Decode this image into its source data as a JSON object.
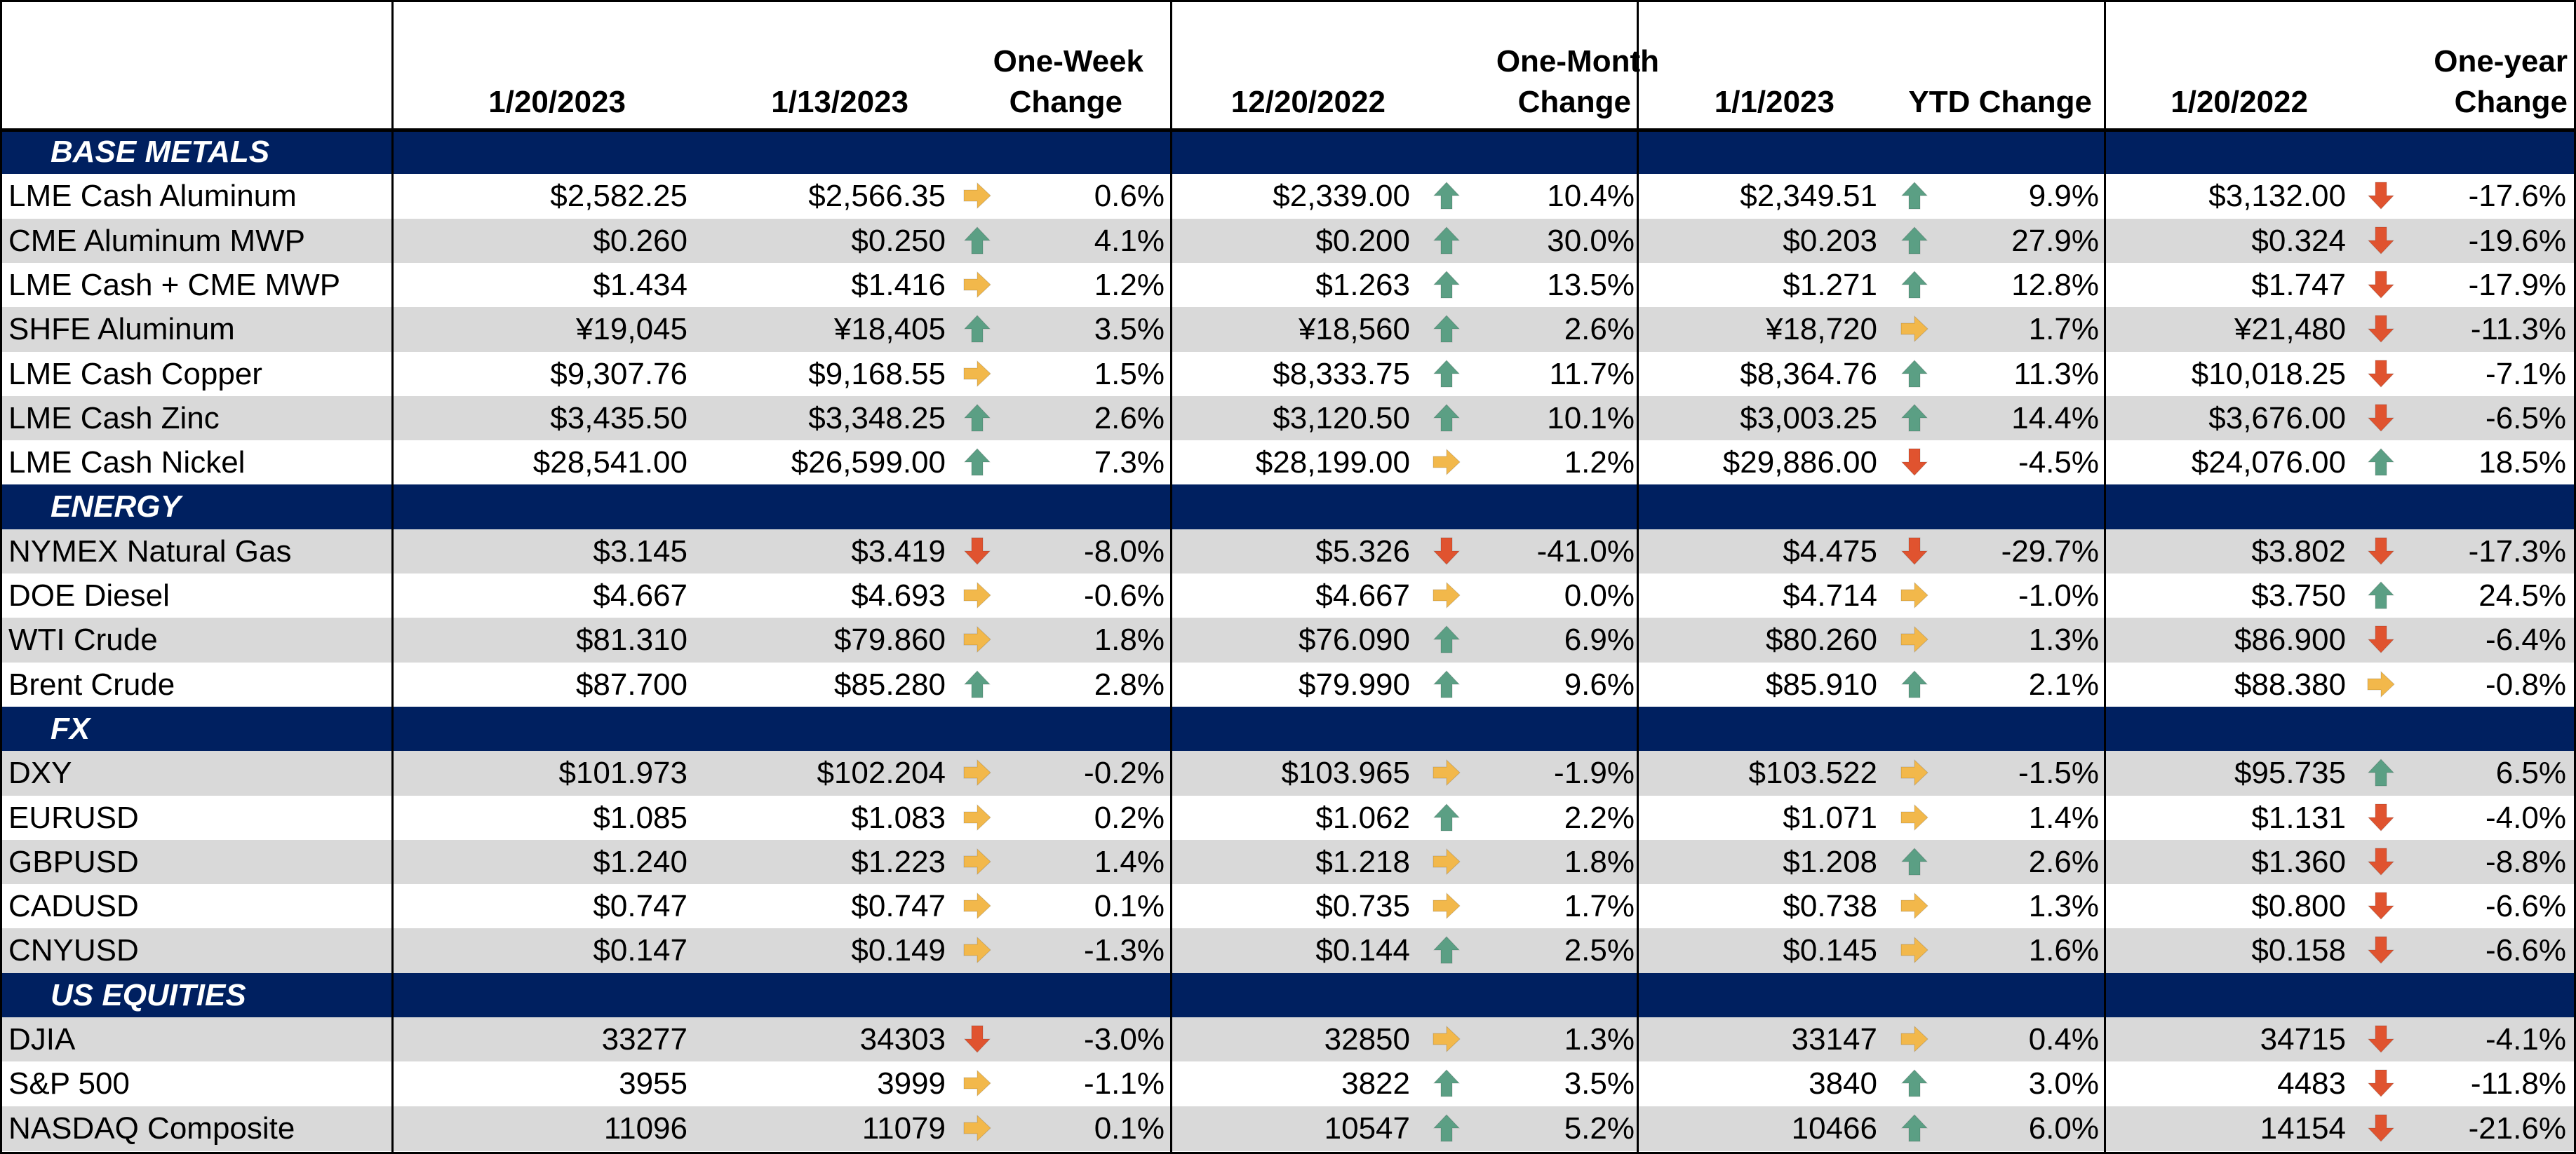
{
  "colors": {
    "section_bg": "#002060",
    "alt_row": "#d9d9d9",
    "arrow_up": "#5b9f84",
    "arrow_right": "#f2b84b",
    "arrow_down": "#e0532f"
  },
  "header": {
    "date_1": "1/20/2023",
    "date_2": "1/13/2023",
    "one_week_line1": "One-Week",
    "one_week_line2": "Change",
    "date_3": "12/20/2022",
    "one_month_line1": "One-Month",
    "one_month_line2": "Change",
    "date_4": "1/1/2023",
    "ytd": "YTD Change",
    "date_5": "1/20/2022",
    "one_year_line1": "One-year",
    "one_year_line2": "Change"
  },
  "sections": [
    {
      "title": "BASE METALS",
      "rows": [
        {
          "name": "LME Cash Aluminum",
          "v1": "$2,582.25",
          "v2": "$2,566.35",
          "a1": "right",
          "c1": "0.6%",
          "v3": "$2,339.00",
          "a2": "up",
          "c2": "10.4%",
          "v4": "$2,349.51",
          "a3": "up",
          "c3": "9.9%",
          "v5": "$3,132.00",
          "a4": "down",
          "c4": "-17.6%"
        },
        {
          "name": "CME Aluminum MWP",
          "v1": "$0.260",
          "v2": "$0.250",
          "a1": "up",
          "c1": "4.1%",
          "v3": "$0.200",
          "a2": "up",
          "c2": "30.0%",
          "v4": "$0.203",
          "a3": "up",
          "c3": "27.9%",
          "v5": "$0.324",
          "a4": "down",
          "c4": "-19.6%"
        },
        {
          "name": "LME Cash + CME MWP",
          "v1": "$1.434",
          "v2": "$1.416",
          "a1": "right",
          "c1": "1.2%",
          "v3": "$1.263",
          "a2": "up",
          "c2": "13.5%",
          "v4": "$1.271",
          "a3": "up",
          "c3": "12.8%",
          "v5": "$1.747",
          "a4": "down",
          "c4": "-17.9%"
        },
        {
          "name": "SHFE Aluminum",
          "v1": "¥19,045",
          "v2": "¥18,405",
          "a1": "up",
          "c1": "3.5%",
          "v3": "¥18,560",
          "a2": "up",
          "c2": "2.6%",
          "v4": "¥18,720",
          "a3": "right",
          "c3": "1.7%",
          "v5": "¥21,480",
          "a4": "down",
          "c4": "-11.3%"
        },
        {
          "name": "LME Cash Copper",
          "v1": "$9,307.76",
          "v2": "$9,168.55",
          "a1": "right",
          "c1": "1.5%",
          "v3": "$8,333.75",
          "a2": "up",
          "c2": "11.7%",
          "v4": "$8,364.76",
          "a3": "up",
          "c3": "11.3%",
          "v5": "$10,018.25",
          "a4": "down",
          "c4": "-7.1%"
        },
        {
          "name": "LME Cash Zinc",
          "v1": "$3,435.50",
          "v2": "$3,348.25",
          "a1": "up",
          "c1": "2.6%",
          "v3": "$3,120.50",
          "a2": "up",
          "c2": "10.1%",
          "v4": "$3,003.25",
          "a3": "up",
          "c3": "14.4%",
          "v5": "$3,676.00",
          "a4": "down",
          "c4": "-6.5%"
        },
        {
          "name": "LME Cash Nickel",
          "v1": "$28,541.00",
          "v2": "$26,599.00",
          "a1": "up",
          "c1": "7.3%",
          "v3": "$28,199.00",
          "a2": "right",
          "c2": "1.2%",
          "v4": "$29,886.00",
          "a3": "down",
          "c3": "-4.5%",
          "v5": "$24,076.00",
          "a4": "up",
          "c4": "18.5%"
        }
      ]
    },
    {
      "title": "ENERGY",
      "rows": [
        {
          "name": "NYMEX Natural Gas",
          "v1": "$3.145",
          "v2": "$3.419",
          "a1": "down",
          "c1": "-8.0%",
          "v3": "$5.326",
          "a2": "down",
          "c2": "-41.0%",
          "v4": "$4.475",
          "a3": "down",
          "c3": "-29.7%",
          "v5": "$3.802",
          "a4": "down",
          "c4": "-17.3%"
        },
        {
          "name": "DOE Diesel",
          "v1": "$4.667",
          "v2": "$4.693",
          "a1": "right",
          "c1": "-0.6%",
          "v3": "$4.667",
          "a2": "right",
          "c2": "0.0%",
          "v4": "$4.714",
          "a3": "right",
          "c3": "-1.0%",
          "v5": "$3.750",
          "a4": "up",
          "c4": "24.5%"
        },
        {
          "name": "WTI Crude",
          "v1": "$81.310",
          "v2": "$79.860",
          "a1": "right",
          "c1": "1.8%",
          "v3": "$76.090",
          "a2": "up",
          "c2": "6.9%",
          "v4": "$80.260",
          "a3": "right",
          "c3": "1.3%",
          "v5": "$86.900",
          "a4": "down",
          "c4": "-6.4%"
        },
        {
          "name": "Brent Crude",
          "v1": "$87.700",
          "v2": "$85.280",
          "a1": "up",
          "c1": "2.8%",
          "v3": "$79.990",
          "a2": "up",
          "c2": "9.6%",
          "v4": "$85.910",
          "a3": "up",
          "c3": "2.1%",
          "v5": "$88.380",
          "a4": "right",
          "c4": "-0.8%"
        }
      ]
    },
    {
      "title": "FX",
      "rows": [
        {
          "name": "DXY",
          "v1": "$101.973",
          "v2": "$102.204",
          "a1": "right",
          "c1": "-0.2%",
          "v3": "$103.965",
          "a2": "right",
          "c2": "-1.9%",
          "v4": "$103.522",
          "a3": "right",
          "c3": "-1.5%",
          "v5": "$95.735",
          "a4": "up",
          "c4": "6.5%"
        },
        {
          "name": "EURUSD",
          "v1": "$1.085",
          "v2": "$1.083",
          "a1": "right",
          "c1": "0.2%",
          "v3": "$1.062",
          "a2": "up",
          "c2": "2.2%",
          "v4": "$1.071",
          "a3": "right",
          "c3": "1.4%",
          "v5": "$1.131",
          "a4": "down",
          "c4": "-4.0%"
        },
        {
          "name": "GBPUSD",
          "v1": "$1.240",
          "v2": "$1.223",
          "a1": "right",
          "c1": "1.4%",
          "v3": "$1.218",
          "a2": "right",
          "c2": "1.8%",
          "v4": "$1.208",
          "a3": "up",
          "c3": "2.6%",
          "v5": "$1.360",
          "a4": "down",
          "c4": "-8.8%"
        },
        {
          "name": "CADUSD",
          "v1": "$0.747",
          "v2": "$0.747",
          "a1": "right",
          "c1": "0.1%",
          "v3": "$0.735",
          "a2": "right",
          "c2": "1.7%",
          "v4": "$0.738",
          "a3": "right",
          "c3": "1.3%",
          "v5": "$0.800",
          "a4": "down",
          "c4": "-6.6%"
        },
        {
          "name": "CNYUSD",
          "v1": "$0.147",
          "v2": "$0.149",
          "a1": "right",
          "c1": "-1.3%",
          "v3": "$0.144",
          "a2": "up",
          "c2": "2.5%",
          "v4": "$0.145",
          "a3": "right",
          "c3": "1.6%",
          "v5": "$0.158",
          "a4": "down",
          "c4": "-6.6%"
        }
      ]
    },
    {
      "title": "US EQUITIES",
      "rows": [
        {
          "name": "DJIA",
          "v1": "33277",
          "v2": "34303",
          "a1": "down",
          "c1": "-3.0%",
          "v3": "32850",
          "a2": "right",
          "c2": "1.3%",
          "v4": "33147",
          "a3": "right",
          "c3": "0.4%",
          "v5": "34715",
          "a4": "down",
          "c4": "-4.1%"
        },
        {
          "name": "S&P 500",
          "v1": "3955",
          "v2": "3999",
          "a1": "right",
          "c1": "-1.1%",
          "v3": "3822",
          "a2": "up",
          "c2": "3.5%",
          "v4": "3840",
          "a3": "up",
          "c3": "3.0%",
          "v5": "4483",
          "a4": "down",
          "c4": "-11.8%"
        },
        {
          "name": "NASDAQ Composite",
          "v1": "11096",
          "v2": "11079",
          "a1": "right",
          "c1": "0.1%",
          "v3": "10547",
          "a2": "up",
          "c2": "5.2%",
          "v4": "10466",
          "a3": "up",
          "c3": "6.0%",
          "v5": "14154",
          "a4": "down",
          "c4": "-21.6%"
        }
      ]
    }
  ]
}
